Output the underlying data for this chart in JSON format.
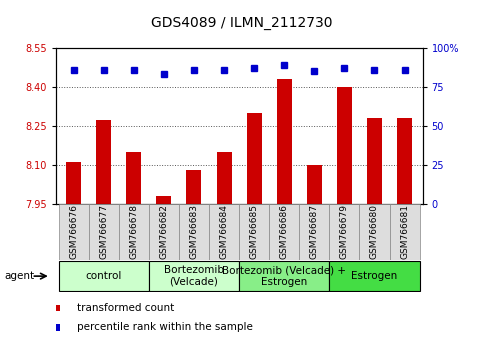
{
  "title": "GDS4089 / ILMN_2112730",
  "samples": [
    "GSM766676",
    "GSM766677",
    "GSM766678",
    "GSM766682",
    "GSM766683",
    "GSM766684",
    "GSM766685",
    "GSM766686",
    "GSM766687",
    "GSM766679",
    "GSM766680",
    "GSM766681"
  ],
  "bar_values": [
    8.11,
    8.27,
    8.15,
    7.98,
    8.08,
    8.15,
    8.3,
    8.43,
    8.1,
    8.4,
    8.28,
    8.28
  ],
  "percentile_values": [
    86,
    86,
    86,
    83,
    86,
    86,
    87,
    89,
    85,
    87,
    86,
    86
  ],
  "ylim_left": [
    7.95,
    8.55
  ],
  "ylim_right": [
    0,
    100
  ],
  "yticks_left": [
    7.95,
    8.1,
    8.25,
    8.4,
    8.55
  ],
  "yticks_right": [
    0,
    25,
    50,
    75,
    100
  ],
  "bar_color": "#cc0000",
  "dot_color": "#0000cc",
  "groups": [
    {
      "label": "control",
      "start": 0,
      "end": 3,
      "color": "#ccffcc"
    },
    {
      "label": "Bortezomib\n(Velcade)",
      "start": 3,
      "end": 6,
      "color": "#ccffcc"
    },
    {
      "label": "Bortezomib (Velcade) +\nEstrogen",
      "start": 6,
      "end": 9,
      "color": "#88ee88"
    },
    {
      "label": "Estrogen",
      "start": 9,
      "end": 12,
      "color": "#44dd44"
    }
  ],
  "legend_bar_label": "transformed count",
  "legend_dot_label": "percentile rank within the sample",
  "title_fontsize": 10,
  "tick_fontsize": 7,
  "sample_fontsize": 6.5,
  "group_fontsize": 7.5,
  "legend_fontsize": 7.5
}
